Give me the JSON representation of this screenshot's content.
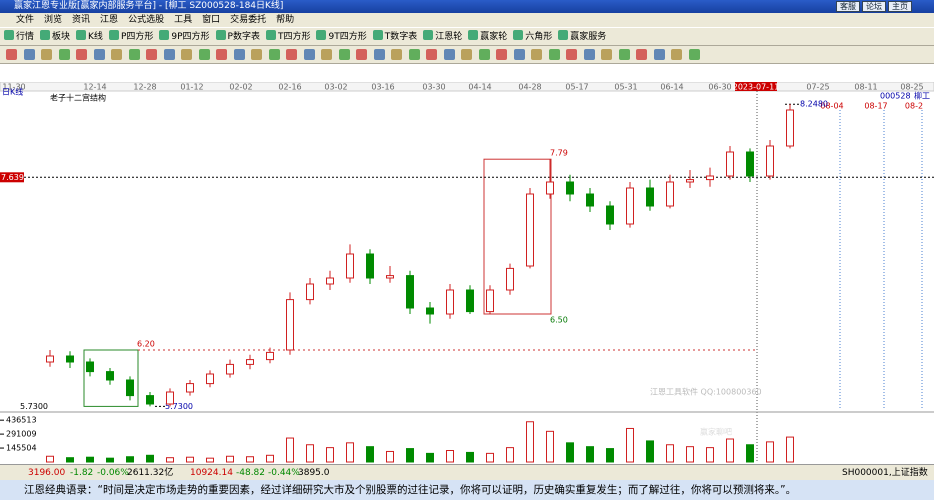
{
  "window": {
    "title": "赢家江恩专业版[赢家内部服务平台] - [柳工  SZ000528-184日K线]",
    "buttons": [
      "客服",
      "论坛",
      "主页"
    ]
  },
  "menu": [
    "文件",
    "浏览",
    "资讯",
    "江恩",
    "公式选股",
    "工具",
    "窗口",
    "交易委托",
    "帮助"
  ],
  "toolbar": [
    "行情",
    "板块",
    "K线",
    "P四方形",
    "9P四方形",
    "P数字表",
    "T四方形",
    "9T四方形",
    "T数字表",
    "江恩轮",
    "赢家轮",
    "六角形",
    "赢家服务"
  ],
  "chart": {
    "period": "日K线",
    "study": "老子十二宫结构",
    "stock": "000528",
    "stock_name": "柳工",
    "dates": [
      "11-30",
      "12-14",
      "12-28",
      "01-12",
      "02-02",
      "02-16",
      "03-02",
      "03-16",
      "03-30",
      "04-14",
      "04-28",
      "05-17",
      "05-31",
      "06-14",
      "06-30",
      "2023-07-11",
      "07-25",
      "08-11",
      "08-25"
    ],
    "future_dates": [
      "08-04",
      "08-17",
      "08-2"
    ],
    "ylim": [
      5.7,
      8.35
    ],
    "open": [
      6.1,
      6.15,
      6.1,
      6.02,
      5.95,
      5.82,
      5.75,
      5.85,
      5.92,
      6.0,
      6.08,
      6.12,
      6.2,
      6.62,
      6.75,
      6.8,
      7.0,
      6.8,
      6.82,
      6.55,
      6.5,
      6.7,
      6.52,
      6.7,
      6.9,
      7.5,
      7.6,
      7.5,
      7.4,
      7.25,
      7.55,
      7.4,
      7.6,
      7.62,
      7.65,
      7.85,
      7.65,
      7.9
    ],
    "high": [
      6.2,
      6.19,
      6.13,
      6.05,
      5.98,
      5.85,
      5.88,
      5.95,
      6.03,
      6.12,
      6.16,
      6.22,
      6.68,
      6.8,
      6.86,
      7.08,
      7.04,
      6.9,
      6.86,
      6.6,
      6.75,
      6.74,
      6.74,
      6.92,
      7.55,
      7.79,
      7.66,
      7.55,
      7.44,
      7.6,
      7.62,
      7.66,
      7.7,
      7.72,
      7.9,
      7.88,
      7.95,
      8.25
    ],
    "low": [
      6.06,
      6.05,
      5.98,
      5.91,
      5.78,
      5.73,
      5.73,
      5.82,
      5.89,
      5.97,
      6.04,
      6.09,
      6.16,
      6.58,
      6.7,
      6.76,
      6.75,
      6.76,
      6.5,
      6.42,
      6.46,
      6.5,
      6.5,
      6.66,
      6.88,
      7.46,
      7.44,
      7.35,
      7.2,
      7.22,
      7.36,
      7.38,
      7.55,
      7.56,
      7.62,
      7.6,
      7.62,
      7.88
    ],
    "close": [
      6.15,
      6.1,
      6.02,
      5.95,
      5.82,
      5.75,
      5.85,
      5.92,
      6.0,
      6.08,
      6.12,
      6.18,
      6.62,
      6.75,
      6.8,
      7.0,
      6.8,
      6.82,
      6.55,
      6.5,
      6.7,
      6.52,
      6.7,
      6.88,
      7.5,
      7.6,
      7.5,
      7.4,
      7.25,
      7.55,
      7.4,
      7.6,
      7.62,
      7.65,
      7.85,
      7.65,
      7.9,
      8.2
    ],
    "levels": [
      {
        "value": 7.6392,
        "label": "7.6392"
      },
      {
        "value": 8.248,
        "label": "8.2480"
      },
      {
        "value": 7.79,
        "label": "7.79"
      },
      {
        "value": 6.5,
        "label": "6.50"
      },
      {
        "value": 6.2,
        "label": "6.20"
      },
      {
        "value": 5.73,
        "label": "5.7300"
      },
      {
        "value": 5.73,
        "label": "5.7300"
      }
    ],
    "volume": [
      60000,
      45000,
      50000,
      40000,
      55000,
      70000,
      45000,
      50000,
      40000,
      60000,
      55000,
      70000,
      250000,
      180000,
      150000,
      200000,
      160000,
      110000,
      140000,
      90000,
      120000,
      100000,
      90000,
      150000,
      420000,
      320000,
      200000,
      160000,
      140000,
      350000,
      220000,
      180000,
      160000,
      150000,
      240000,
      180000,
      210000,
      260000
    ],
    "vlim": [
      0,
      480000
    ],
    "vticks": [
      145504,
      291009,
      436513
    ],
    "watermark": [
      "江恩工具软件 QQ:100800360",
      "赢家聊吧"
    ]
  },
  "status": {
    "sh": "3196.00",
    "sh_change": "-1.82",
    "sh_pct": "-0.06%",
    "sh_amount": "2611.32亿",
    "sz": "10924.14",
    "sz_change": "-48.82",
    "sz_pct": "-0.44%",
    "sz_amount": "3895.0",
    "index": "SH000001,上证指数"
  },
  "quote": "江恩经典语录：“时间是决定市场走势的重要因素，经过详细研究大市及个别股票的过往记录，你将可以证明，历史确实重复发生；而了解过往，你将可以预测将来。”。"
}
